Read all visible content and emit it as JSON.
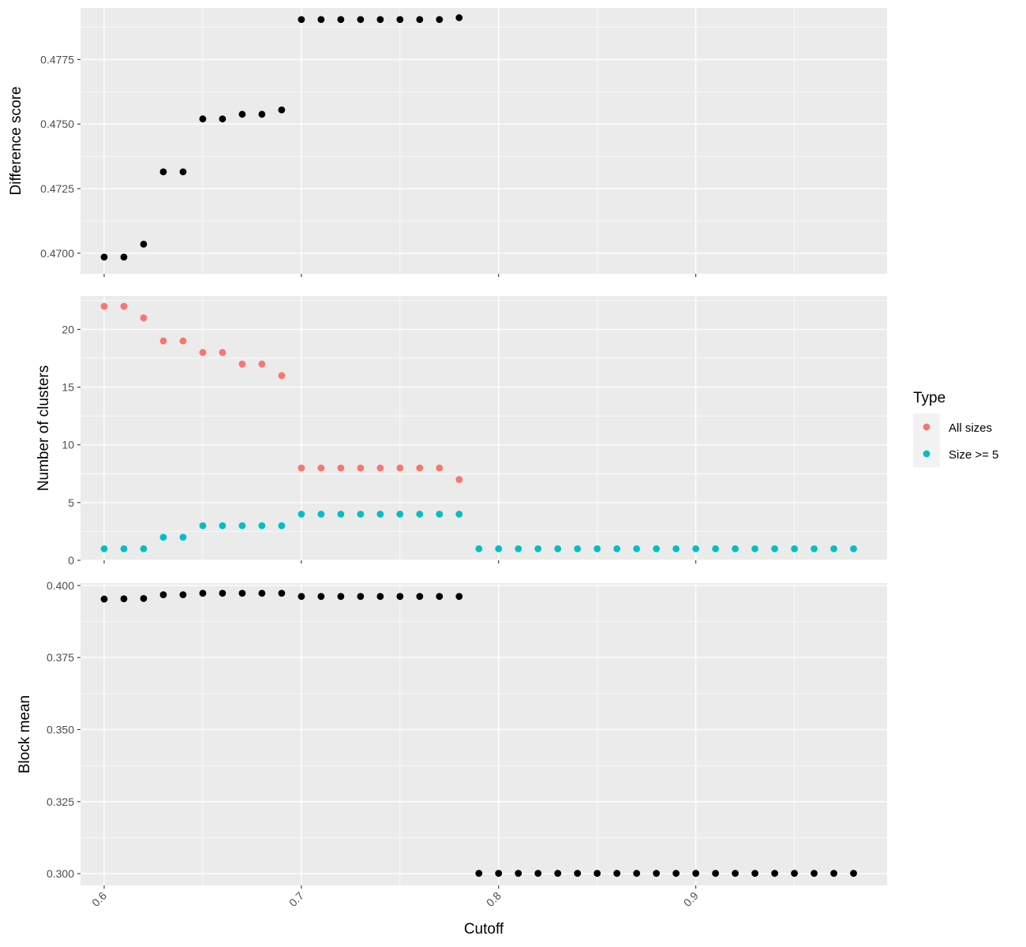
{
  "chart_data": {
    "type": "scatter",
    "xlabel": "Cutoff",
    "x_ticks": [
      "0.6",
      "0.7",
      "0.8",
      "0.9"
    ],
    "x_tick_values": [
      0.6,
      0.7,
      0.8,
      0.9
    ],
    "xlim": [
      0.588,
      0.997
    ],
    "grid": true,
    "legend": {
      "title": "Type",
      "placement": "right",
      "entries": [
        {
          "name": "All sizes",
          "color": "#F8766D"
        },
        {
          "name": "Size >= 5",
          "color": "#00BFC4"
        }
      ]
    },
    "panels": [
      {
        "ylabel": "Difference score",
        "ylim": [
          0.4692,
          0.4795
        ],
        "y_ticks": [
          "0.4700",
          "0.4725",
          "0.4750",
          "0.4775"
        ],
        "y_tick_values": [
          0.47,
          0.4725,
          0.475,
          0.4775
        ],
        "series": [
          {
            "name": "",
            "color": "#000000",
            "x": [
              0.6,
              0.61,
              0.62,
              0.63,
              0.64,
              0.65,
              0.66,
              0.67,
              0.68,
              0.69,
              0.7,
              0.71,
              0.72,
              0.73,
              0.74,
              0.75,
              0.76,
              0.77,
              0.78
            ],
            "y": [
              0.46985,
              0.46985,
              0.47035,
              0.47315,
              0.47315,
              0.4752,
              0.4752,
              0.47538,
              0.47538,
              0.47555,
              0.47905,
              0.47905,
              0.47905,
              0.47905,
              0.47905,
              0.47905,
              0.47905,
              0.47905,
              0.47912
            ]
          }
        ]
      },
      {
        "ylabel": "Number of clusters",
        "ylim": [
          0,
          22.9
        ],
        "y_ticks": [
          "0",
          "5",
          "10",
          "15",
          "20"
        ],
        "y_tick_values": [
          0,
          5,
          10,
          15,
          20
        ],
        "series": [
          {
            "name": "All sizes",
            "color": "#F8766D",
            "x": [
              0.6,
              0.61,
              0.62,
              0.63,
              0.64,
              0.65,
              0.66,
              0.67,
              0.68,
              0.69,
              0.7,
              0.71,
              0.72,
              0.73,
              0.74,
              0.75,
              0.76,
              0.77,
              0.78
            ],
            "y": [
              22,
              22,
              21,
              19,
              19,
              18,
              18,
              17,
              17,
              16,
              8,
              8,
              8,
              8,
              8,
              8,
              8,
              8,
              7
            ]
          },
          {
            "name": "Size >= 5",
            "color": "#00BFC4",
            "x": [
              0.6,
              0.61,
              0.62,
              0.63,
              0.64,
              0.65,
              0.66,
              0.67,
              0.68,
              0.69,
              0.7,
              0.71,
              0.72,
              0.73,
              0.74,
              0.75,
              0.76,
              0.77,
              0.78,
              0.79,
              0.8,
              0.81,
              0.82,
              0.83,
              0.84,
              0.85,
              0.86,
              0.87,
              0.88,
              0.89,
              0.9,
              0.91,
              0.92,
              0.93,
              0.94,
              0.95,
              0.96,
              0.97,
              0.98
            ],
            "y": [
              1,
              1,
              1,
              2,
              2,
              3,
              3,
              3,
              3,
              3,
              4,
              4,
              4,
              4,
              4,
              4,
              4,
              4,
              4,
              1,
              1,
              1,
              1,
              1,
              1,
              1,
              1,
              1,
              1,
              1,
              1,
              1,
              1,
              1,
              1,
              1,
              1,
              1,
              1
            ]
          }
        ]
      },
      {
        "ylabel": "Block mean",
        "ylim": [
          0.2959,
          0.4008
        ],
        "y_ticks": [
          "0.300",
          "0.325",
          "0.350",
          "0.375",
          "0.400"
        ],
        "y_tick_values": [
          0.3,
          0.325,
          0.35,
          0.375,
          0.4
        ],
        "series": [
          {
            "name": "",
            "color": "#000000",
            "x": [
              0.6,
              0.61,
              0.62,
              0.63,
              0.64,
              0.65,
              0.66,
              0.67,
              0.68,
              0.69,
              0.7,
              0.71,
              0.72,
              0.73,
              0.74,
              0.75,
              0.76,
              0.77,
              0.78,
              0.79,
              0.8,
              0.81,
              0.82,
              0.83,
              0.84,
              0.85,
              0.86,
              0.87,
              0.88,
              0.89,
              0.9,
              0.91,
              0.92,
              0.93,
              0.94,
              0.95,
              0.96,
              0.97,
              0.98
            ],
            "y": [
              0.3953,
              0.3954,
              0.3955,
              0.3968,
              0.3968,
              0.3973,
              0.3973,
              0.3973,
              0.3973,
              0.3973,
              0.3962,
              0.3962,
              0.3962,
              0.3962,
              0.3962,
              0.3962,
              0.3962,
              0.3962,
              0.3962,
              0.3001,
              0.3001,
              0.3001,
              0.3001,
              0.3001,
              0.3001,
              0.3001,
              0.3001,
              0.3001,
              0.3001,
              0.3001,
              0.3001,
              0.3001,
              0.3001,
              0.3001,
              0.3001,
              0.3001,
              0.3001,
              0.3001,
              0.3001
            ]
          }
        ]
      }
    ]
  }
}
